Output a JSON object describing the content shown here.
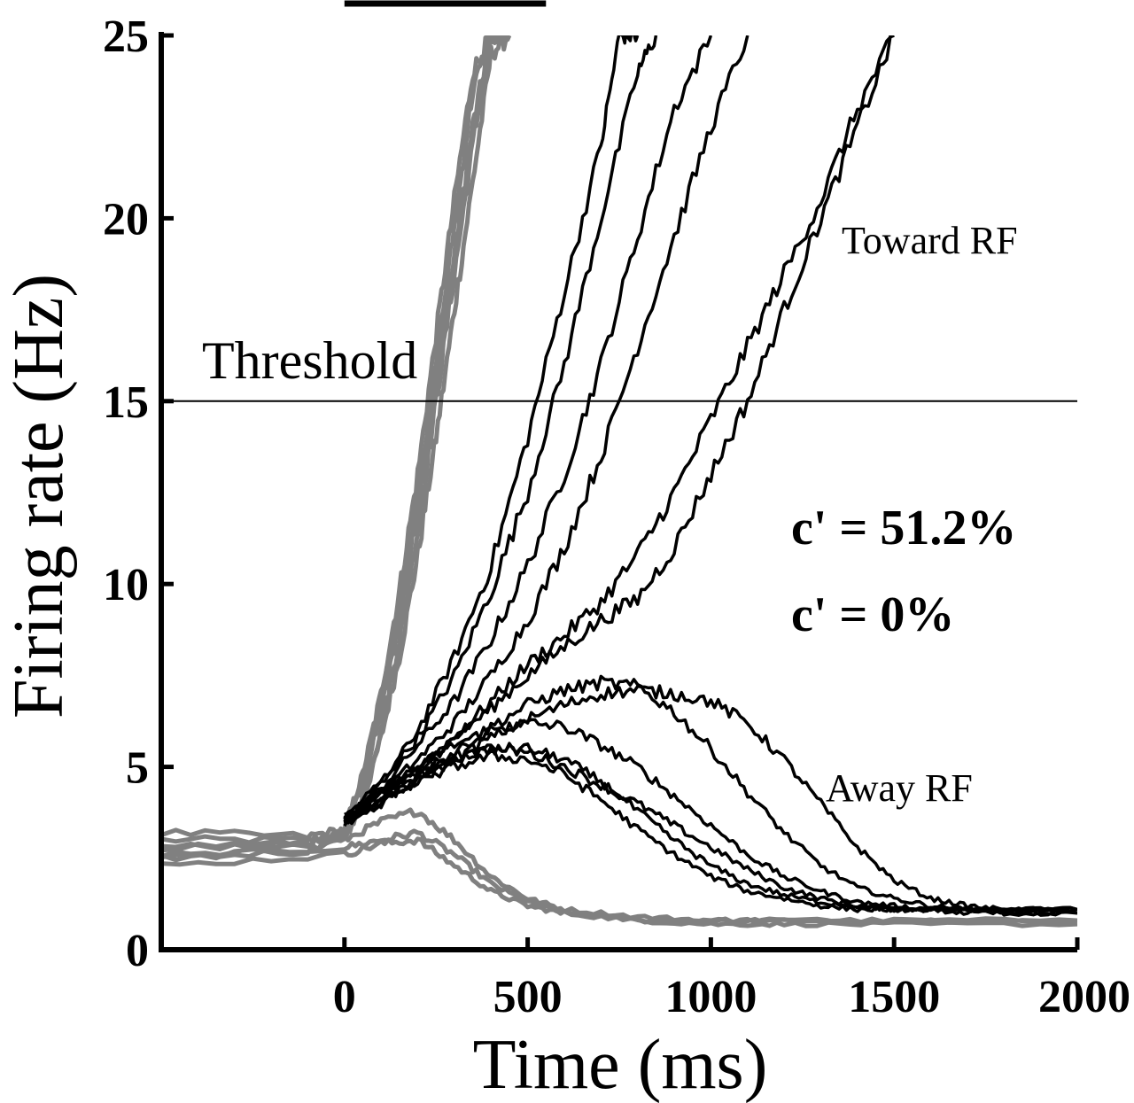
{
  "chart_data": {
    "type": "line",
    "xlabel": "Time (ms)",
    "ylabel": "Firing rate (Hz)",
    "xlim": [
      -500,
      2000
    ],
    "ylim": [
      0,
      25
    ],
    "xticks": [
      0,
      500,
      1000,
      1500,
      2000
    ],
    "yticks": [
      0,
      5,
      10,
      15,
      20,
      25
    ],
    "xtick_labels": [
      "0",
      "500",
      "1000",
      "1500",
      "2000"
    ],
    "ytick_labels": [
      "0",
      "5",
      "10",
      "15",
      "20",
      "25"
    ],
    "grid": false,
    "stimulus_bar": [
      0,
      550
    ],
    "threshold": {
      "value": 15,
      "label": "Threshold"
    },
    "annotations": {
      "toward": "Toward RF",
      "away": "Away RF",
      "coh_high": "c' = 51.2%",
      "coh_zero": "c' = 0%"
    },
    "colors": {
      "coh_high": "#808080",
      "coh_zero": "#000000"
    },
    "series": [
      {
        "group": "c' = 51.2%",
        "x": [
          -500,
          -100,
          0,
          50,
          100,
          150,
          200,
          250,
          300,
          350,
          400,
          450
        ],
        "y": [
          3,
          3,
          3.2,
          4.5,
          6.5,
          9,
          12,
          15.5,
          19,
          22.5,
          25,
          25
        ]
      },
      {
        "group": "c' = 51.2%",
        "x": [
          -500,
          -100,
          0,
          50,
          100,
          150,
          200,
          250,
          300,
          350,
          400,
          450
        ],
        "y": [
          2.6,
          2.8,
          3,
          4,
          5.8,
          8,
          10.8,
          14,
          17.5,
          21,
          24.5,
          25
        ]
      },
      {
        "group": "c' = 51.2%",
        "x": [
          -500,
          -100,
          0,
          50,
          100,
          150,
          200,
          250,
          300,
          350,
          400,
          450
        ],
        "y": [
          3.2,
          3.1,
          3.3,
          4.8,
          7,
          9.8,
          13,
          16.8,
          20.5,
          24,
          25,
          25
        ]
      },
      {
        "group": "c' = 51.2%",
        "x": [
          -500,
          -100,
          0,
          50,
          100,
          150,
          200,
          250,
          300,
          350,
          400,
          450
        ],
        "y": [
          2.8,
          2.9,
          3.1,
          4.2,
          6,
          8.5,
          11.5,
          15,
          18.5,
          22,
          25,
          25
        ]
      },
      {
        "group": "c' = 51.2%",
        "x": [
          -500,
          -100,
          0,
          50,
          100,
          150,
          200,
          250,
          300,
          350,
          400,
          450
        ],
        "y": [
          2.5,
          2.7,
          3.2,
          4.6,
          6.8,
          9.5,
          12.5,
          16,
          19.8,
          23.5,
          25,
          25
        ]
      },
      {
        "group": "c' = 51.2%",
        "x": [
          -500,
          0,
          100,
          200,
          300,
          400,
          500,
          600,
          800,
          1000,
          1200,
          1500,
          2000
        ],
        "y": [
          2.5,
          2.8,
          3,
          3.2,
          2.6,
          1.8,
          1.3,
          1,
          0.8,
          0.8,
          0.8,
          0.8,
          0.8
        ]
      },
      {
        "group": "c' = 51.2%",
        "x": [
          -500,
          0,
          100,
          200,
          300,
          400,
          500,
          600,
          800,
          1000,
          1200,
          1500,
          2000
        ],
        "y": [
          2.8,
          3,
          3.5,
          3.8,
          3,
          2,
          1.4,
          1.1,
          0.9,
          0.8,
          0.8,
          0.8,
          0.8
        ]
      },
      {
        "group": "c' = 51.2%",
        "x": [
          -500,
          0,
          100,
          200,
          300,
          400,
          500,
          600,
          800,
          1000,
          1200,
          1500,
          2000
        ],
        "y": [
          2.3,
          2.6,
          2.9,
          3,
          2.3,
          1.6,
          1.2,
          1,
          0.8,
          0.7,
          0.7,
          0.7,
          0.7
        ]
      },
      {
        "group": "c' = 0%",
        "x": [
          0,
          100,
          200,
          300,
          400,
          500,
          600,
          700,
          750,
          800
        ],
        "y": [
          3.5,
          4.5,
          6,
          8,
          10.5,
          14,
          18,
          22,
          25,
          25
        ]
      },
      {
        "group": "c' = 0%",
        "x": [
          0,
          100,
          200,
          300,
          400,
          500,
          600,
          700,
          800,
          850
        ],
        "y": [
          3.6,
          4.6,
          5.8,
          7.5,
          9.8,
          12.5,
          16,
          20,
          24,
          25
        ]
      },
      {
        "group": "c' = 0%",
        "x": [
          0,
          100,
          200,
          300,
          400,
          500,
          600,
          700,
          800,
          900,
          1000
        ],
        "y": [
          3.4,
          4.4,
          5.6,
          6.8,
          8.5,
          10.5,
          13,
          16,
          19.5,
          23,
          25
        ]
      },
      {
        "group": "c' = 0%",
        "x": [
          0,
          100,
          200,
          300,
          400,
          500,
          600,
          700,
          800,
          900,
          1000,
          1100
        ],
        "y": [
          3.5,
          4.3,
          5.2,
          6.2,
          7.5,
          9,
          11,
          13.5,
          16.5,
          19.5,
          22.5,
          25
        ]
      },
      {
        "group": "c' = 0%",
        "x": [
          0,
          100,
          200,
          300,
          400,
          500,
          600,
          700,
          800,
          900,
          1000,
          1100,
          1200,
          1300,
          1400,
          1500
        ],
        "y": [
          3.6,
          4.2,
          5,
          5.8,
          6.8,
          7.8,
          8.6,
          9.5,
          10.8,
          12.5,
          14.5,
          16.5,
          18.5,
          20.5,
          23,
          25
        ]
      },
      {
        "group": "c' = 0%",
        "x": [
          0,
          100,
          200,
          300,
          400,
          500,
          600,
          700,
          800,
          900,
          1000,
          1100,
          1200,
          1300,
          1400,
          1500
        ],
        "y": [
          3.4,
          4.1,
          4.9,
          5.8,
          6.6,
          7.5,
          8.3,
          9,
          9.6,
          11,
          13,
          15,
          17.5,
          20,
          22.5,
          25
        ]
      },
      {
        "group": "c' = 0%",
        "x": [
          0,
          100,
          200,
          300,
          400,
          500,
          600,
          700,
          800,
          900,
          1000,
          1100,
          1200,
          1300,
          1400,
          1500,
          1600,
          1700,
          1800,
          2000
        ],
        "y": [
          3.5,
          4.2,
          4.8,
          5.2,
          5.5,
          5.4,
          5,
          4.5,
          4,
          3.4,
          2.8,
          2.2,
          1.7,
          1.4,
          1.2,
          1.1,
          1.1,
          1.1,
          1.1,
          1.1
        ]
      },
      {
        "group": "c' = 0%",
        "x": [
          0,
          100,
          200,
          300,
          400,
          500,
          600,
          700,
          800,
          900,
          1000,
          1100,
          1200,
          1300,
          1400,
          1500,
          1600,
          1700,
          1800,
          2000
        ],
        "y": [
          3.6,
          4.3,
          5,
          5.6,
          6,
          6.2,
          6.1,
          5.6,
          5,
          4.2,
          3.4,
          2.6,
          2,
          1.6,
          1.3,
          1.2,
          1.1,
          1.1,
          1.1,
          1.1
        ]
      },
      {
        "group": "c' = 0%",
        "x": [
          0,
          100,
          200,
          300,
          400,
          500,
          600,
          700,
          800,
          900,
          1000,
          1100,
          1200,
          1300,
          1400,
          1500,
          1600,
          1700,
          1800,
          2000
        ],
        "y": [
          3.4,
          4,
          4.7,
          5.4,
          6.1,
          6.7,
          7.1,
          7.3,
          7.2,
          6.5,
          5.5,
          4.3,
          3.2,
          2.3,
          1.7,
          1.4,
          1.2,
          1.1,
          1.1,
          1.1
        ]
      },
      {
        "group": "c' = 0%",
        "x": [
          0,
          100,
          200,
          300,
          400,
          500,
          600,
          700,
          800,
          900,
          1000,
          1100,
          1200,
          1300,
          1400,
          1500,
          1600,
          1700,
          1800,
          2000
        ],
        "y": [
          3.5,
          4,
          4.6,
          5.2,
          5.8,
          6.3,
          6.7,
          7,
          7.1,
          7,
          6.8,
          6.2,
          5.2,
          4,
          2.8,
          1.9,
          1.4,
          1.2,
          1.1,
          1.1
        ]
      },
      {
        "group": "c' = 0%",
        "x": [
          0,
          100,
          200,
          300,
          400,
          500,
          600,
          700,
          800,
          900,
          1000,
          1100,
          1200,
          1300,
          1400,
          1500,
          1600,
          1700,
          1800,
          2000
        ],
        "y": [
          3.6,
          4.3,
          4.9,
          5.3,
          5.5,
          5.5,
          5.2,
          4.6,
          3.8,
          3,
          2.3,
          1.8,
          1.5,
          1.3,
          1.2,
          1.1,
          1.1,
          1.1,
          1,
          1
        ]
      },
      {
        "group": "c' = 0%",
        "x": [
          0,
          100,
          200,
          300,
          400,
          500,
          600,
          700,
          800,
          900,
          1000,
          1100,
          1200,
          1300,
          1400,
          1500,
          1600,
          1700,
          1800,
          2000
        ],
        "y": [
          3.5,
          4.1,
          4.6,
          5,
          5.3,
          5.2,
          4.8,
          4.1,
          3.3,
          2.6,
          2,
          1.6,
          1.4,
          1.2,
          1.1,
          1.1,
          1.1,
          1,
          1,
          1
        ]
      }
    ]
  }
}
